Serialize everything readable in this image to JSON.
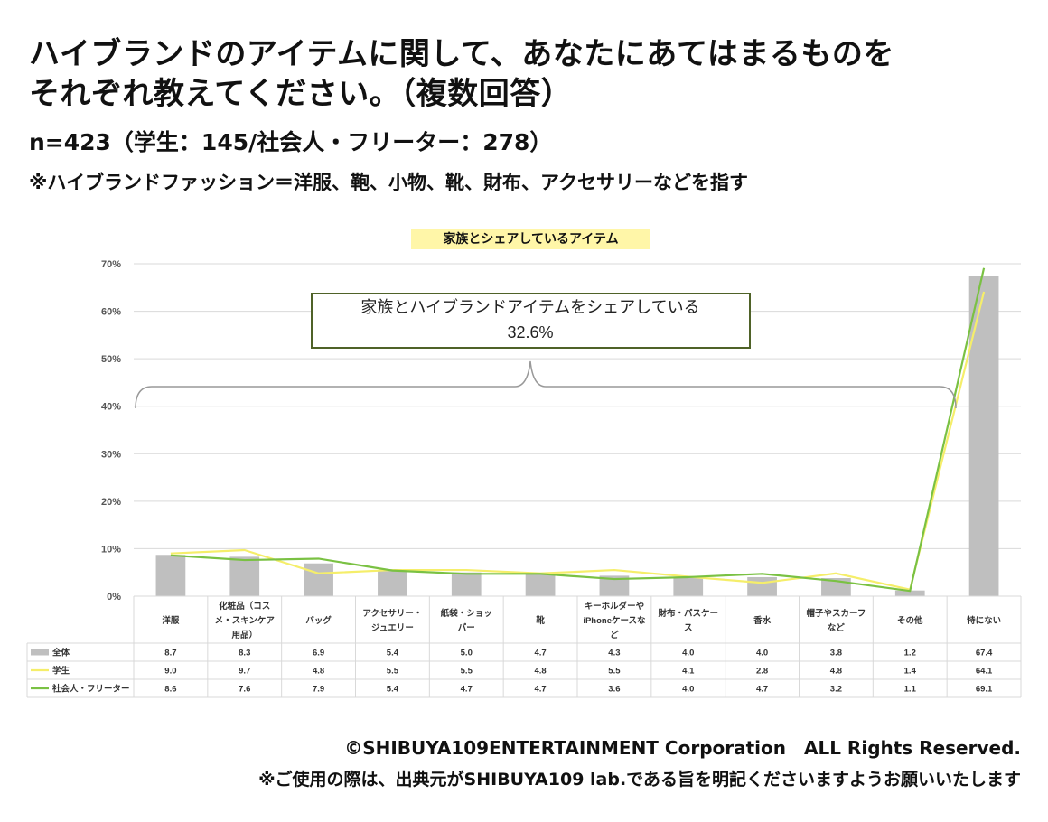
{
  "header": {
    "title_line1": "ハイブランドのアイテムに関して、あなたにあてはまるものを",
    "title_line2": "それぞれ教えてください。（複数回答）",
    "sample": "n=423（学生：145/社会人・フリーター：278）",
    "note": "※ハイブランドファッション＝洋服、鞄、小物、靴、財布、アクセサリーなどを指す"
  },
  "footer": {
    "copyright": "©SHIBUYA109ENTERTAINMENT Corporation　ALL Rights Reserved.",
    "usage": "※ご使用の際は、出典元がSHIBUYA109 lab.である旨を明記くださいますようお願いいたします"
  },
  "annotation": {
    "line1": "家族とハイブランドアイテムをシェアしている",
    "line2": "32.6%"
  },
  "colors": {
    "bar": "#bfbfbf",
    "student": "#f5ee6a",
    "worker": "#7ac143",
    "grid": "#d9d9d9",
    "annotation_border": "#4f6228"
  },
  "chart_data": {
    "type": "bar",
    "title": "家族とシェアしているアイテム",
    "categories": [
      [
        "洋服"
      ],
      [
        "化粧品（コス",
        "メ・スキンケア",
        "用品）"
      ],
      [
        "バッグ"
      ],
      [
        "アクセサリー・",
        "ジュエリー"
      ],
      [
        "紙袋・ショッ",
        "パー"
      ],
      [
        "靴"
      ],
      [
        "キーホルダーや",
        "iPhoneケースな",
        "ど"
      ],
      [
        "財布・パスケー",
        "ス"
      ],
      [
        "香水"
      ],
      [
        "帽子やスカーフ",
        "など"
      ],
      [
        "その他"
      ],
      [
        "特にない"
      ]
    ],
    "yticks": [
      "0%",
      "10%",
      "20%",
      "30%",
      "40%",
      "50%",
      "60%",
      "70%"
    ],
    "ylim": [
      0,
      70
    ],
    "grid": true,
    "series": [
      {
        "name": "全体",
        "kind": "bar",
        "values": [
          8.7,
          8.3,
          6.9,
          5.4,
          5.0,
          4.7,
          4.3,
          4.0,
          4.0,
          3.8,
          1.2,
          67.4
        ]
      },
      {
        "name": "学生",
        "kind": "line",
        "values": [
          9.0,
          9.7,
          4.8,
          5.5,
          5.5,
          4.8,
          5.5,
          4.1,
          2.8,
          4.8,
          1.4,
          64.1
        ]
      },
      {
        "name": "社会人・フリーター",
        "kind": "line",
        "values": [
          8.6,
          7.6,
          7.9,
          5.4,
          4.7,
          4.7,
          3.6,
          4.0,
          4.7,
          3.2,
          1.1,
          69.1
        ]
      }
    ],
    "table_values": [
      [
        "8.7",
        "8.3",
        "6.9",
        "5.4",
        "5.0",
        "4.7",
        "4.3",
        "4.0",
        "4.0",
        "3.8",
        "1.2",
        "67.4"
      ],
      [
        "9.0",
        "9.7",
        "4.8",
        "5.5",
        "5.5",
        "4.8",
        "5.5",
        "4.1",
        "2.8",
        "4.8",
        "1.4",
        "64.1"
      ],
      [
        "8.6",
        "7.6",
        "7.9",
        "5.4",
        "4.7",
        "4.7",
        "3.6",
        "4.0",
        "4.7",
        "3.2",
        "1.1",
        "69.1"
      ]
    ]
  }
}
